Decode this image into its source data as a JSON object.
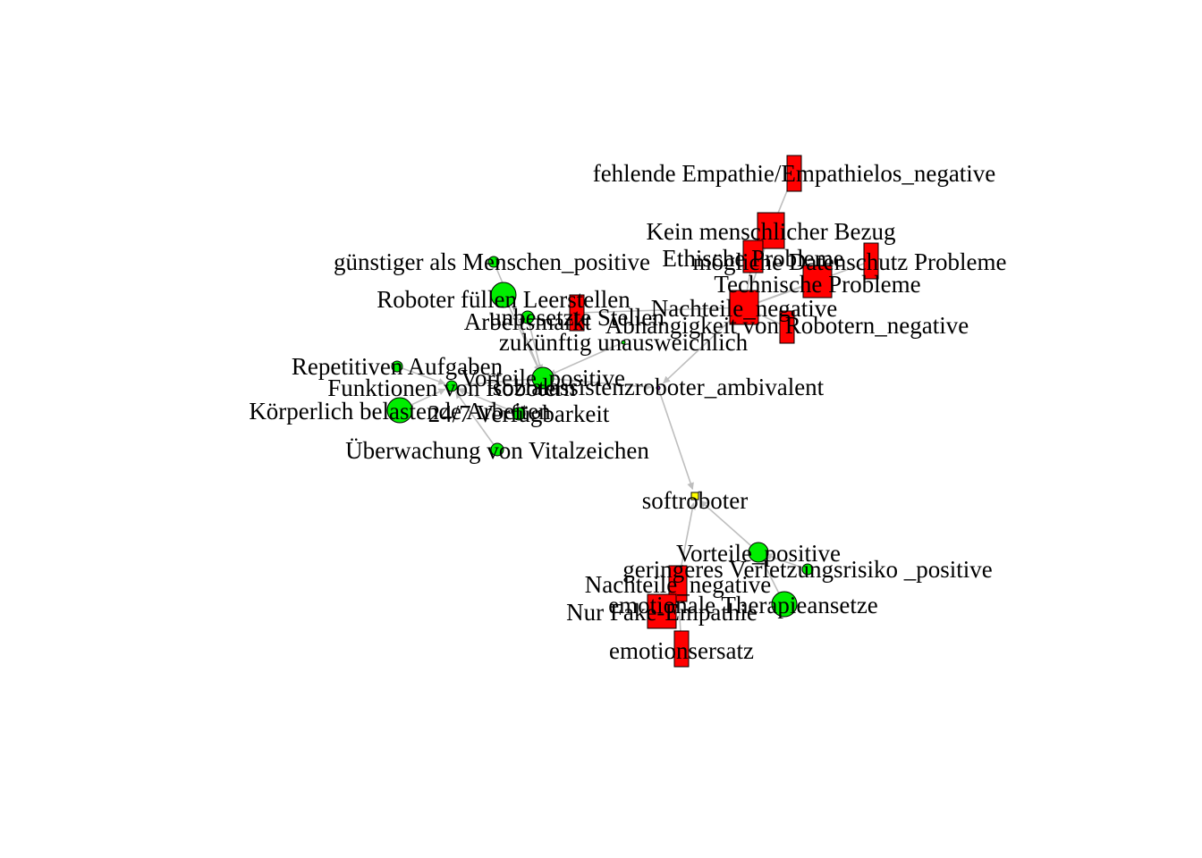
{
  "colors": {
    "positive": "#00ee00",
    "negative": "#ff0000",
    "ambivalent": "#a020f0",
    "root": "#ffff00",
    "edge": "#bebebe",
    "outline": "#000000"
  },
  "nodes": [
    {
      "id": "fehlende_empathie",
      "label": "fehlende Empathie/Empathielos_negative",
      "kind": "negative"
    },
    {
      "id": "kein_menschlicher_bezug",
      "label": "Kein menschlicher Bezug",
      "kind": "negative"
    },
    {
      "id": "ethische_probleme",
      "label": "Ethische Probleme",
      "kind": "negative"
    },
    {
      "id": "datenschutz",
      "label": "mögliche Datenschutz Probleme",
      "kind": "negative"
    },
    {
      "id": "technische_probleme",
      "label": "Technische Probleme",
      "kind": "negative"
    },
    {
      "id": "nachteile_top",
      "label": "Nachteile_negative",
      "kind": "negative"
    },
    {
      "id": "abhaengigkeit",
      "label": "Abhängigkeit von Robotern_negative",
      "kind": "negative"
    },
    {
      "id": "arbeitsmarkt",
      "label": "Arbeitsmarkt",
      "kind": "negative"
    },
    {
      "id": "guenstiger",
      "label": "günstiger als Menschen_positive",
      "kind": "positive"
    },
    {
      "id": "leerstellen",
      "label": "Roboter füllen Leerstellen",
      "kind": "positive"
    },
    {
      "id": "unbesetzte",
      "label": "unbesetzte Stellen",
      "kind": "positive"
    },
    {
      "id": "zukuenftig",
      "label": "zukünftig unausweichlich",
      "kind": "positive"
    },
    {
      "id": "repetitiv",
      "label": "Repetitiven Aufgaben",
      "kind": "positive"
    },
    {
      "id": "vorteile_top",
      "label": "Vorteile_positive",
      "kind": "positive"
    },
    {
      "id": "funktionen",
      "label": "Funktionen von Robotern",
      "kind": "positive"
    },
    {
      "id": "sozialassistenz",
      "label": "sozialassistenzroboter_ambivalent",
      "kind": "ambivalent"
    },
    {
      "id": "koerperlich",
      "label": "Körperlich belastende Arbeiten",
      "kind": "positive"
    },
    {
      "id": "verfuegbarkeit",
      "label": "24/7 Verfügbarkeit",
      "kind": "positive"
    },
    {
      "id": "vitalzeichen",
      "label": "Überwachung von Vitalzeichen",
      "kind": "positive"
    },
    {
      "id": "softroboter",
      "label": "softroboter",
      "kind": "root"
    },
    {
      "id": "vorteile_bottom",
      "label": "Vorteile_positive",
      "kind": "positive"
    },
    {
      "id": "verletzungsrisiko",
      "label": "geringeres Verletzungsrisiko _positive",
      "kind": "positive"
    },
    {
      "id": "nachteile_bottom",
      "label": "Nachteile_negative",
      "kind": "negative"
    },
    {
      "id": "therapie",
      "label": "emotionale Therapieansetze",
      "kind": "positive"
    },
    {
      "id": "fake_empathie",
      "label": "Nur Fake-Empathie",
      "kind": "negative"
    },
    {
      "id": "emotionsersatz",
      "label": "emotionsersatz",
      "kind": "negative"
    }
  ],
  "edges": [
    [
      "fehlende_empathie",
      "kein_menschlicher_bezug"
    ],
    [
      "kein_menschlicher_bezug",
      "nachteile_top"
    ],
    [
      "ethische_probleme",
      "nachteile_top"
    ],
    [
      "datenschutz",
      "nachteile_top"
    ],
    [
      "technische_probleme",
      "nachteile_top"
    ],
    [
      "abhaengigkeit",
      "nachteile_top"
    ],
    [
      "arbeitsmarkt",
      "nachteile_top"
    ],
    [
      "nachteile_top",
      "sozialassistenz"
    ],
    [
      "guenstiger",
      "vorteile_top"
    ],
    [
      "leerstellen",
      "vorteile_top"
    ],
    [
      "unbesetzte",
      "vorteile_top"
    ],
    [
      "zukuenftig",
      "vorteile_top"
    ],
    [
      "repetitiv",
      "funktionen"
    ],
    [
      "koerperlich",
      "funktionen"
    ],
    [
      "verfuegbarkeit",
      "funktionen"
    ],
    [
      "vitalzeichen",
      "funktionen"
    ],
    [
      "funktionen",
      "vorteile_top"
    ],
    [
      "vorteile_top",
      "sozialassistenz"
    ],
    [
      "sozialassistenz",
      "softroboter"
    ],
    [
      "verletzungsrisiko",
      "vorteile_bottom"
    ],
    [
      "therapie",
      "vorteile_bottom"
    ],
    [
      "vorteile_bottom",
      "softroboter"
    ],
    [
      "fake_empathie",
      "nachteile_bottom"
    ],
    [
      "emotionsersatz",
      "nachteile_bottom"
    ],
    [
      "nachteile_bottom",
      "softroboter"
    ]
  ]
}
